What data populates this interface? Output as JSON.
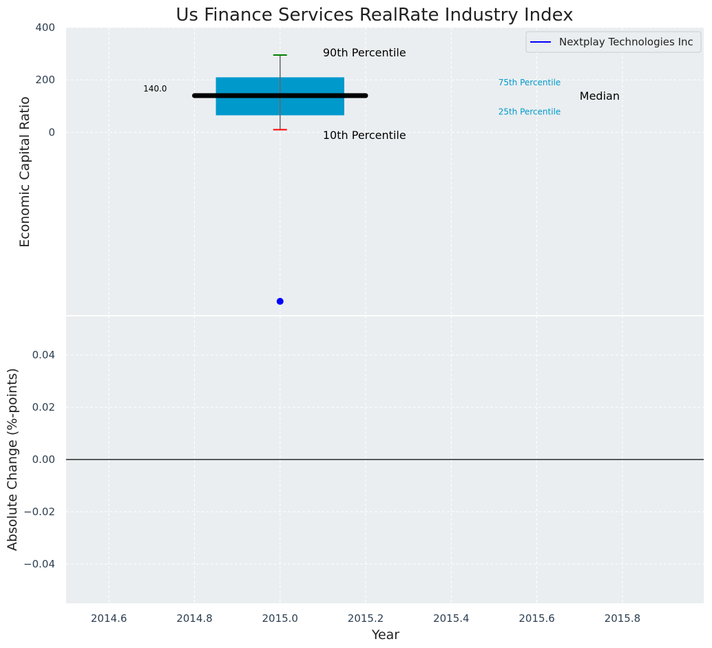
{
  "chart_data": {
    "type": "box",
    "title": "Us Finance Services RealRate Industry Index",
    "legend": {
      "placement": "top-right",
      "entries": [
        {
          "label": "Nextplay Technologies Inc",
          "color": "#0000ff"
        }
      ]
    },
    "x_axis": {
      "label": "Year",
      "range": [
        2014.5,
        2015.99
      ],
      "ticks": [
        2014.6,
        2014.8,
        2015.0,
        2015.2,
        2015.4,
        2015.6,
        2015.8
      ],
      "tick_labels": [
        "2014.6",
        "2014.8",
        "2015.0",
        "2015.2",
        "2015.4",
        "2015.6",
        "2015.8"
      ]
    },
    "panels": [
      {
        "ylabel": "Economic Capital Ratio",
        "ylim": [
          -700,
          400
        ],
        "yticks": [
          0,
          200,
          400
        ],
        "ytick_labels": [
          "0",
          "200",
          "400"
        ],
        "grid": true,
        "box": {
          "x": 2015.0,
          "x_start": 2014.85,
          "x_end": 2015.15,
          "p10": 10,
          "p25": 65,
          "median": 140,
          "p75": 210,
          "p90": 295,
          "fill": "#0099cc",
          "p90_color": "#008000",
          "p10_color": "#ff0000"
        },
        "median_line": {
          "x_start": 2014.8,
          "x_end": 2015.2,
          "value": 140,
          "label": "140.0"
        },
        "company_point": {
          "x": 2015.0,
          "y": -645,
          "color": "#0000ff",
          "series": "Nextplay Technologies Inc"
        },
        "annotations": [
          {
            "text": "90th Percentile",
            "x": 2015.1,
            "y": 290,
            "size": 16,
            "color": "#000000"
          },
          {
            "text": "10th Percentile",
            "x": 2015.1,
            "y": -25,
            "size": 16,
            "color": "#000000"
          },
          {
            "text": "75th Percentile",
            "x": 2015.51,
            "y": 180,
            "size": 12,
            "color": "#0099cc"
          },
          {
            "text": "25th Percentile",
            "x": 2015.51,
            "y": 68,
            "size": 12,
            "color": "#0099cc"
          },
          {
            "text": "Median",
            "x": 2015.7,
            "y": 125,
            "size": 16,
            "color": "#000000"
          }
        ]
      },
      {
        "ylabel": "Absolute Change (%-points)",
        "ylim": [
          -0.055,
          0.055
        ],
        "yticks": [
          -0.04,
          -0.02,
          0.0,
          0.02,
          0.04
        ],
        "ytick_labels": [
          "−0.04",
          "−0.02",
          "0.00",
          "0.02",
          "0.04"
        ],
        "grid": true,
        "zero_line": 0.0
      }
    ]
  },
  "colors": {
    "plot_background": "#eaeef0",
    "grid": "#ffffff",
    "tick_text": "#2c3e50",
    "label_text": "#222222"
  }
}
